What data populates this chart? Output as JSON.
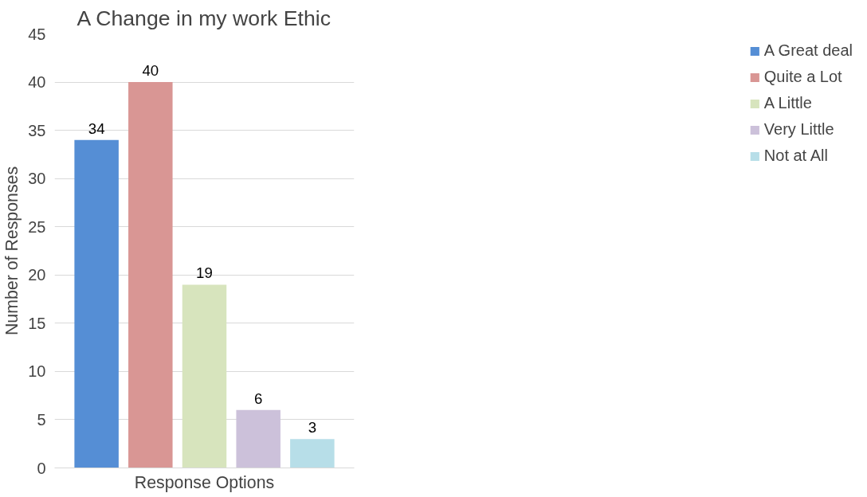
{
  "chart_data": {
    "type": "bar",
    "title": "A Change in my work Ethic",
    "xlabel": "Response Options",
    "ylabel": "Number of Responses",
    "categories": [
      null
    ],
    "series": [
      {
        "name": "A Great deal",
        "color": "#558ed5",
        "values": [
          34
        ]
      },
      {
        "name": "Quite a Lot",
        "color": "#d99694",
        "values": [
          40
        ]
      },
      {
        "name": "A Little",
        "color": "#d7e4bd",
        "values": [
          19
        ]
      },
      {
        "name": "Very Little",
        "color": "#ccc1da",
        "values": [
          6
        ]
      },
      {
        "name": "Not at All",
        "color": "#b7dee8",
        "values": [
          3
        ]
      }
    ],
    "ylim": [
      0,
      45
    ],
    "yticks": [
      0,
      5,
      10,
      15,
      20,
      25,
      30,
      35,
      40,
      45
    ],
    "grid": "y",
    "legend": "right",
    "data_labels": true
  }
}
